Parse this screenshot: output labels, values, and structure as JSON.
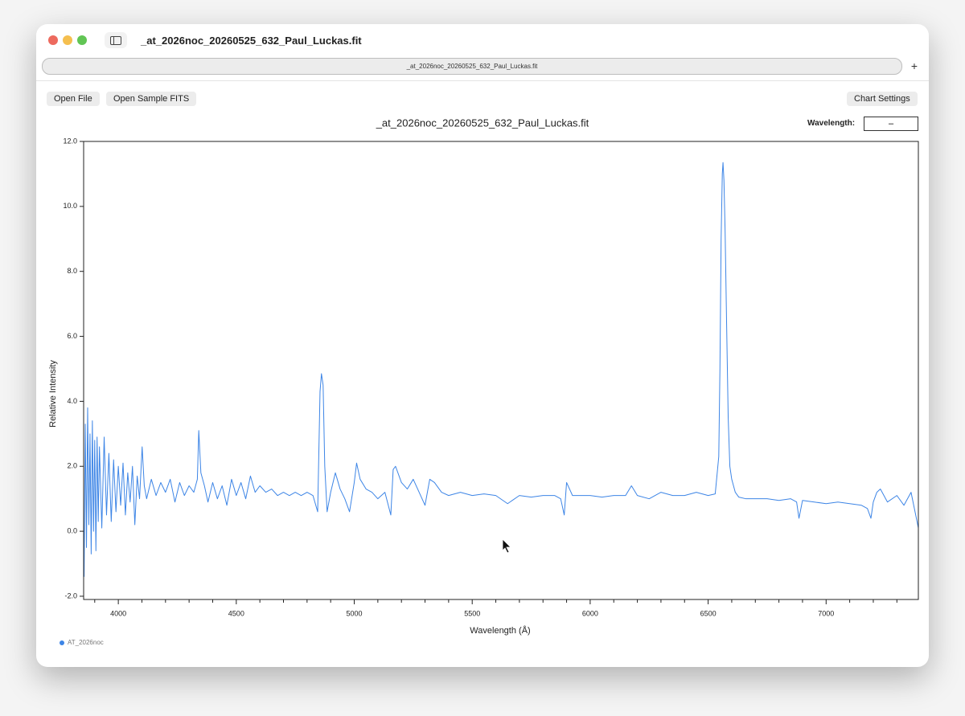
{
  "window": {
    "title": "_at_2026noc_20260525_632_Paul_Luckas.fit",
    "address": "_at_2026noc_20260525_632_Paul_Luckas.fit",
    "new_tab": "+"
  },
  "toolbar": {
    "buttons": [
      "Open File",
      "Open Sample FITS"
    ],
    "settings": "Chart Settings"
  },
  "wavelength": {
    "label": "Wavelength:",
    "value": "–"
  },
  "chart_data": {
    "type": "line",
    "title": "_at_2026noc_20260525_632_Paul_Luckas.fit",
    "x_label": "Wavelength (Å)",
    "y_label": "Relative Intensity",
    "x": [
      3855,
      3860,
      3865,
      3870,
      3875,
      3880,
      3885,
      3890,
      3895,
      3900,
      3905,
      3910,
      3915,
      3920,
      3930,
      3940,
      3950,
      3960,
      3970,
      3980,
      3990,
      4000,
      4010,
      4020,
      4030,
      4040,
      4050,
      4060,
      4070,
      4080,
      4090,
      4101,
      4110,
      4120,
      4140,
      4160,
      4180,
      4200,
      4220,
      4240,
      4260,
      4280,
      4300,
      4320,
      4335,
      4341,
      4350,
      4365,
      4380,
      4400,
      4420,
      4440,
      4460,
      4480,
      4500,
      4520,
      4540,
      4560,
      4580,
      4600,
      4625,
      4650,
      4675,
      4700,
      4725,
      4750,
      4775,
      4800,
      4825,
      4845,
      4855,
      4861,
      4868,
      4875,
      4885,
      4900,
      4920,
      4940,
      4960,
      4980,
      5000,
      5010,
      5025,
      5050,
      5075,
      5100,
      5130,
      5155,
      5165,
      5175,
      5200,
      5225,
      5250,
      5275,
      5300,
      5320,
      5340,
      5370,
      5400,
      5450,
      5500,
      5550,
      5600,
      5650,
      5700,
      5750,
      5800,
      5850,
      5875,
      5890,
      5900,
      5925,
      5950,
      6000,
      6050,
      6100,
      6150,
      6175,
      6200,
      6250,
      6300,
      6350,
      6400,
      6450,
      6500,
      6530,
      6545,
      6550,
      6555,
      6560,
      6563,
      6567,
      6572,
      6578,
      6585,
      6592,
      6600,
      6615,
      6630,
      6660,
      6700,
      6750,
      6800,
      6850,
      6875,
      6885,
      6900,
      6950,
      7000,
      7050,
      7100,
      7150,
      7175,
      7190,
      7200,
      7215,
      7230,
      7260,
      7300,
      7330,
      7360,
      7391
    ],
    "series": [
      {
        "name": "AT_2026noc",
        "color": "#3d85e6",
        "values": [
          -1.4,
          3.3,
          -0.5,
          3.8,
          0.2,
          3.0,
          -0.7,
          3.4,
          0.0,
          2.8,
          -0.6,
          2.9,
          0.3,
          2.6,
          0.1,
          2.9,
          0.5,
          2.4,
          0.3,
          2.2,
          0.6,
          2.0,
          0.8,
          2.1,
          0.5,
          1.8,
          0.9,
          2.0,
          0.2,
          1.7,
          1.0,
          2.6,
          1.4,
          1.0,
          1.6,
          1.1,
          1.5,
          1.2,
          1.6,
          0.9,
          1.5,
          1.1,
          1.4,
          1.2,
          1.6,
          3.1,
          1.8,
          1.4,
          0.9,
          1.5,
          1.0,
          1.4,
          0.8,
          1.6,
          1.1,
          1.5,
          1.0,
          1.7,
          1.2,
          1.4,
          1.2,
          1.3,
          1.1,
          1.2,
          1.1,
          1.2,
          1.1,
          1.2,
          1.1,
          0.6,
          4.3,
          4.85,
          4.5,
          2.0,
          0.6,
          1.2,
          1.8,
          1.3,
          1.0,
          0.6,
          1.5,
          2.1,
          1.6,
          1.3,
          1.2,
          1.0,
          1.2,
          0.5,
          1.9,
          2.0,
          1.5,
          1.3,
          1.6,
          1.2,
          0.8,
          1.6,
          1.5,
          1.2,
          1.1,
          1.2,
          1.1,
          1.15,
          1.1,
          0.85,
          1.1,
          1.05,
          1.1,
          1.1,
          1.0,
          0.5,
          1.5,
          1.1,
          1.1,
          1.1,
          1.05,
          1.1,
          1.1,
          1.4,
          1.1,
          1.0,
          1.2,
          1.1,
          1.1,
          1.2,
          1.1,
          1.15,
          2.3,
          5.0,
          9.0,
          11.0,
          11.35,
          10.8,
          9.2,
          6.5,
          3.5,
          2.0,
          1.6,
          1.2,
          1.05,
          1.0,
          1.0,
          1.0,
          0.95,
          1.0,
          0.9,
          0.4,
          0.95,
          0.9,
          0.85,
          0.9,
          0.85,
          0.8,
          0.7,
          0.4,
          0.9,
          1.2,
          1.3,
          0.9,
          1.1,
          0.8,
          1.2,
          0.1
        ]
      }
    ],
    "xlim": [
      3853,
      7391
    ],
    "ylim": [
      -2.1,
      12.0
    ],
    "xticks": [
      4000,
      4500,
      5000,
      5500,
      6000,
      6500,
      7000
    ],
    "xminorticks": [
      3900,
      4100,
      4200,
      4300,
      4400,
      4600,
      4700,
      4800,
      4900,
      5100,
      5200,
      5300,
      5400,
      5600,
      5700,
      5800,
      5900,
      6100,
      6200,
      6300,
      6400,
      6600,
      6700,
      6800,
      6900,
      7100,
      7200,
      7300
    ],
    "yticks": [
      {
        "value": -2,
        "label": "-2.0"
      },
      {
        "value": 0,
        "label": "0.0"
      },
      {
        "value": 2,
        "label": "2.0"
      },
      {
        "value": 4,
        "label": "4.0"
      },
      {
        "value": 6,
        "label": "6.0"
      },
      {
        "value": 8,
        "label": "8.0"
      },
      {
        "value": 10,
        "label": "10.0"
      },
      {
        "value": 12,
        "label": "12.0"
      }
    ]
  }
}
